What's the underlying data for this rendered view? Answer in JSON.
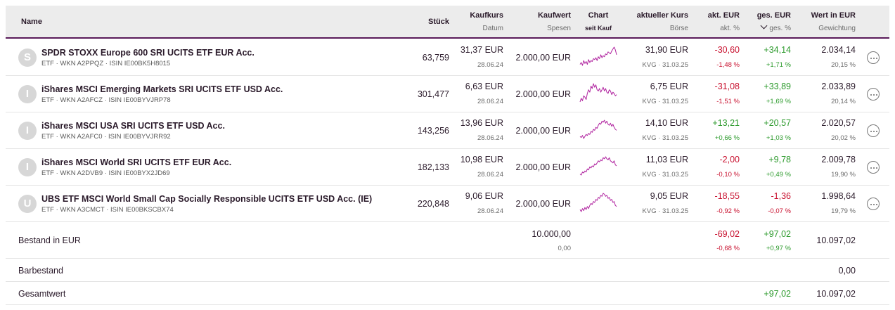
{
  "header": {
    "name": "Name",
    "stueck": "Stück",
    "kaufkurs": "Kaufkurs",
    "datum": "Datum",
    "kaufwert": "Kaufwert",
    "spesen": "Spesen",
    "chart": "Chart",
    "seit_kauf": "seit Kauf",
    "aktueller_kurs": "aktueller Kurs",
    "boerse": "Börse",
    "akt_eur": "akt. EUR",
    "akt_pct": "akt. %",
    "ges_eur": "ges. EUR",
    "ges_pct": "ges. %",
    "wert_eur": "Wert in EUR",
    "gewichtung": "Gewichtung",
    "sort_icon": "chevron-down-icon"
  },
  "positions": [
    {
      "avatar": "S",
      "name": "SPDR STOXX Europe 600 SRI UCITS ETF EUR Acc.",
      "sub": "ETF · WKN A2PPQZ · ISIN IE00BK5H8015",
      "stueck": "63,759",
      "kaufkurs": "31,37 EUR",
      "datum": "28.06.24",
      "kaufwert": "2.000,00 EUR",
      "kurs": "31,90 EUR",
      "boerse": "KVG · 31.03.25",
      "akt_eur": "-30,60",
      "akt_pct": "-1,48 %",
      "ges_eur": "+34,14",
      "ges_pct": "+1,71 %",
      "wert": "2.034,14",
      "gewichtung": "20,15 %",
      "spark": [
        4,
        6,
        3,
        8,
        5,
        7,
        4,
        9,
        6,
        8,
        7,
        10,
        9,
        11,
        8,
        12,
        10,
        14,
        11,
        13,
        12,
        15,
        14,
        17,
        16,
        15,
        18,
        20,
        22,
        19,
        14
      ]
    },
    {
      "avatar": "I",
      "name": "iShares MSCI Emerging Markets SRI UCITS ETF USD Acc.",
      "sub": "ETF · WKN A2AFCZ · ISIN IE00BYVJRP78",
      "stueck": "301,477",
      "kaufkurs": "6,63 EUR",
      "datum": "28.06.24",
      "kaufwert": "2.000,00 EUR",
      "kurs": "6,75 EUR",
      "boerse": "KVG · 31.03.25",
      "akt_eur": "-31,08",
      "akt_pct": "-1,51 %",
      "ges_eur": "+33,89",
      "ges_pct": "+1,69 %",
      "wert": "2.033,89",
      "gewichtung": "20,14 %",
      "spark": [
        5,
        8,
        6,
        10,
        9,
        7,
        12,
        15,
        13,
        18,
        16,
        20,
        17,
        19,
        15,
        14,
        16,
        13,
        15,
        17,
        14,
        16,
        13,
        12,
        15,
        14,
        11,
        13,
        12,
        10,
        11
      ]
    },
    {
      "avatar": "I",
      "name": "iShares MSCI USA SRI UCITS ETF USD Acc.",
      "sub": "ETF · WKN A2AFC0 · ISIN IE00BYVJRR92",
      "stueck": "143,256",
      "kaufkurs": "13,96 EUR",
      "datum": "28.06.24",
      "kaufwert": "2.000,00 EUR",
      "kurs": "14,10 EUR",
      "boerse": "KVG · 31.03.25",
      "akt_eur": "+13,21",
      "akt_pct": "+0,66 %",
      "ges_eur": "+20,57",
      "ges_pct": "+1,03 %",
      "wert": "2.020,57",
      "gewichtung": "20,02 %",
      "spark": [
        6,
        5,
        7,
        4,
        6,
        8,
        7,
        9,
        8,
        11,
        10,
        13,
        12,
        15,
        14,
        17,
        19,
        18,
        21,
        20,
        22,
        19,
        21,
        18,
        17,
        19,
        16,
        18,
        15,
        13,
        12
      ]
    },
    {
      "avatar": "I",
      "name": "iShares MSCI World SRI UCITS ETF EUR Acc.",
      "sub": "ETF · WKN A2DVB9 · ISIN IE00BYX2JD69",
      "stueck": "182,133",
      "kaufkurs": "10,98 EUR",
      "datum": "28.06.24",
      "kaufwert": "2.000,00 EUR",
      "kurs": "11,03 EUR",
      "boerse": "KVG · 31.03.25",
      "akt_eur": "-2,00",
      "akt_pct": "-0,10 %",
      "ges_eur": "+9,78",
      "ges_pct": "+0,49 %",
      "wert": "2.009,78",
      "gewichtung": "19,90 %",
      "spark": [
        5,
        4,
        7,
        6,
        8,
        7,
        10,
        9,
        12,
        11,
        13,
        12,
        15,
        14,
        16,
        18,
        17,
        19,
        18,
        21,
        20,
        22,
        20,
        19,
        21,
        18,
        17,
        16,
        18,
        14,
        13
      ]
    },
    {
      "avatar": "U",
      "name": "UBS ETF MSCI World Small Cap Socially Responsible UCITS ETF USD Acc. (IE)",
      "sub": "ETF · WKN A3CMCT · ISIN IE00BKSCBX74",
      "stueck": "220,848",
      "kaufkurs": "9,06 EUR",
      "datum": "28.06.24",
      "kaufwert": "2.000,00 EUR",
      "kurs": "9,05 EUR",
      "boerse": "KVG · 31.03.25",
      "akt_eur": "-18,55",
      "akt_pct": "-0,92 %",
      "ges_eur": "-1,36",
      "ges_pct": "-0,07 %",
      "wert": "1.998,64",
      "gewichtung": "19,79 %",
      "spark": [
        6,
        4,
        7,
        5,
        8,
        6,
        9,
        7,
        10,
        12,
        11,
        14,
        13,
        16,
        15,
        18,
        17,
        20,
        19,
        22,
        21,
        19,
        20,
        17,
        18,
        15,
        16,
        13,
        14,
        10,
        9
      ]
    }
  ],
  "summary": {
    "bestand_label": "Bestand in EUR",
    "bestand_kaufwert": "10.000,00",
    "bestand_spesen": "0,00",
    "bestand_akt_eur": "-69,02",
    "bestand_akt_pct": "-0,68 %",
    "bestand_ges_eur": "+97,02",
    "bestand_ges_pct": "+0,97 %",
    "bestand_wert": "10.097,02",
    "barbestand_label": "Barbestand",
    "barbestand_wert": "0,00",
    "gesamtwert_label": "Gesamtwert",
    "gesamtwert_ges_eur": "+97,02",
    "gesamtwert_wert": "10.097,02"
  },
  "colors": {
    "accent": "#5a1a5a",
    "spark": "#b0239f",
    "negative": "#c8102e",
    "positive": "#2c9a2c"
  },
  "icons": {
    "avatar": "fund-avatar-icon",
    "actions": "more-options-icon"
  }
}
